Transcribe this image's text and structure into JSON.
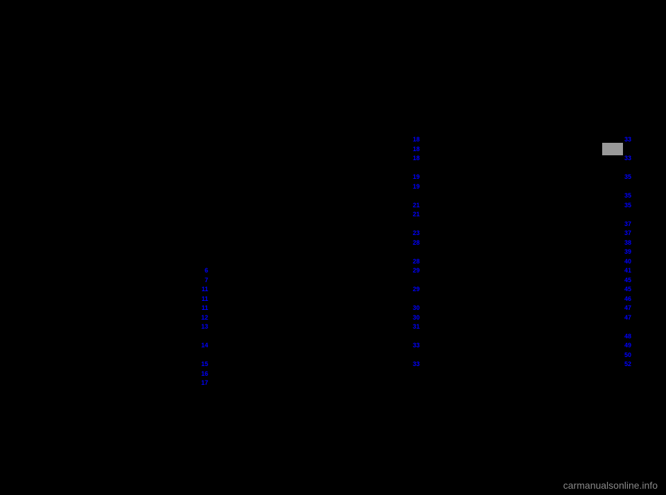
{
  "watermark": "carmanualsonline.info",
  "columns": {
    "col1": [
      {
        "text": "",
        "page": ""
      },
      {
        "text": "",
        "page": ""
      },
      {
        "text": "",
        "page": ""
      },
      {
        "text": "",
        "page": ""
      },
      {
        "text": "",
        "page": ""
      },
      {
        "text": "",
        "page": ""
      },
      {
        "text": "",
        "page": ""
      },
      {
        "text": "",
        "page": ""
      },
      {
        "text": "",
        "page": ""
      },
      {
        "text": "",
        "page": ""
      },
      {
        "text": "",
        "page": ""
      },
      {
        "text": "",
        "page": ""
      },
      {
        "text": "",
        "page": ""
      },
      {
        "text": "",
        "page": ""
      },
      {
        "text": "",
        "page": "6"
      },
      {
        "text": "",
        "page": "7"
      },
      {
        "text": "",
        "page": "11"
      },
      {
        "text": "",
        "page": "11"
      },
      {
        "text": "",
        "page": "11"
      },
      {
        "text": "",
        "page": "12"
      },
      {
        "text": "",
        "page": "13"
      },
      {
        "text": "",
        "page": ""
      },
      {
        "text": "",
        "page": "14"
      },
      {
        "text": "",
        "page": ""
      },
      {
        "text": "",
        "page": "15"
      },
      {
        "text": "",
        "page": "16"
      },
      {
        "text": "",
        "page": "17"
      }
    ],
    "col2": [
      {
        "text": "",
        "page": "18"
      },
      {
        "text": "",
        "page": "18"
      },
      {
        "text": "",
        "page": "18"
      },
      {
        "text": "",
        "page": ""
      },
      {
        "text": "",
        "page": "19"
      },
      {
        "text": "",
        "page": "19"
      },
      {
        "text": "",
        "page": ""
      },
      {
        "text": "",
        "page": "21"
      },
      {
        "text": "",
        "page": "21"
      },
      {
        "text": "",
        "page": ""
      },
      {
        "text": "",
        "page": "23"
      },
      {
        "text": "",
        "page": "28"
      },
      {
        "text": "",
        "page": ""
      },
      {
        "text": "",
        "page": "28"
      },
      {
        "text": "",
        "page": "29"
      },
      {
        "text": "",
        "page": ""
      },
      {
        "text": "",
        "page": "29"
      },
      {
        "text": "",
        "page": ""
      },
      {
        "text": "",
        "page": "30"
      },
      {
        "text": "",
        "page": "30"
      },
      {
        "text": "",
        "page": "31"
      },
      {
        "text": "",
        "page": ""
      },
      {
        "text": "",
        "page": "33"
      },
      {
        "text": "",
        "page": ""
      },
      {
        "text": "",
        "page": "33"
      }
    ],
    "col3": [
      {
        "text": "",
        "page": "33"
      },
      {
        "text": "",
        "page": ""
      },
      {
        "text": "",
        "page": "33"
      },
      {
        "text": "",
        "page": ""
      },
      {
        "text": "",
        "page": "35"
      },
      {
        "text": "",
        "page": ""
      },
      {
        "text": "",
        "page": "35"
      },
      {
        "text": "",
        "page": "35"
      },
      {
        "text": "",
        "page": ""
      },
      {
        "text": "",
        "page": "37"
      },
      {
        "text": "",
        "page": "37"
      },
      {
        "text": "",
        "page": "38"
      },
      {
        "text": "",
        "page": "39"
      },
      {
        "text": "",
        "page": "40"
      },
      {
        "text": "",
        "page": "41"
      },
      {
        "text": "",
        "page": "45"
      },
      {
        "text": "",
        "page": "45"
      },
      {
        "text": "",
        "page": "46"
      },
      {
        "text": "",
        "page": "47"
      },
      {
        "text": "",
        "page": "47"
      },
      {
        "text": "",
        "page": ""
      },
      {
        "text": "",
        "page": "48"
      },
      {
        "text": "",
        "page": "49"
      },
      {
        "text": "",
        "page": "50"
      },
      {
        "text": "",
        "page": "52"
      }
    ]
  }
}
